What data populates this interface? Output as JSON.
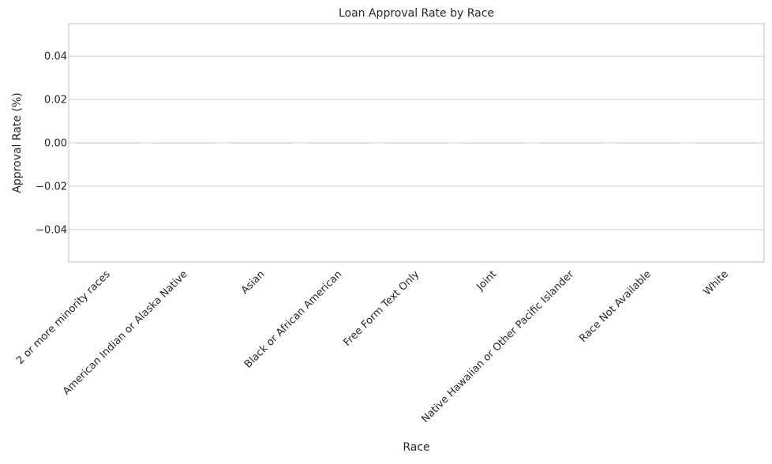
{
  "chart_data": {
    "type": "bar",
    "title": "Loan Approval Rate by Race",
    "xlabel": "Race",
    "ylabel": "Approval Rate (%)",
    "categories": [
      "2 or more minority races",
      "American Indian or Alaska Native",
      "Asian",
      "Black or African American",
      "Free Form Text Only",
      "Joint",
      "Native Hawaiian or Other Pacific Islander",
      "Race Not Available",
      "White"
    ],
    "values": [
      0,
      0,
      0,
      0,
      0,
      0,
      0,
      0,
      0
    ],
    "ylim": [
      -0.055,
      0.055
    ],
    "yticks": [
      -0.04,
      -0.02,
      0.0,
      0.02,
      0.04
    ],
    "ytick_labels": [
      "−0.04",
      "−0.02",
      "0.00",
      "0.02",
      "0.04"
    ],
    "grid": true,
    "legend": "none",
    "colors": {
      "grid": "#cccccc",
      "frame": "#cccccc",
      "bar": "#c8c8c8",
      "text": "#262626"
    }
  }
}
